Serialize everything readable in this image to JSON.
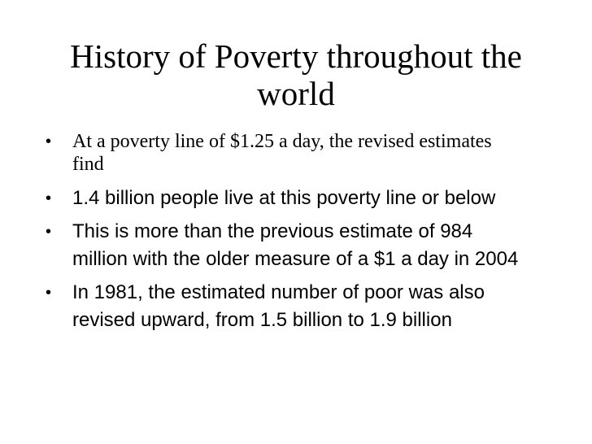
{
  "slide": {
    "title": "History of Poverty throughout the world",
    "bullet_symbol": "•",
    "bullets": [
      "At a poverty line of $1.25 a day, the revised estimates find",
      "1.4 billion people live at this poverty line or below",
      "This is more than the previous estimate of 984 million with the older measure of a $1 a day in 2004",
      "In 1981, the estimated number of poor was also revised upward, from 1.5 billion to 1.9 billion"
    ]
  }
}
